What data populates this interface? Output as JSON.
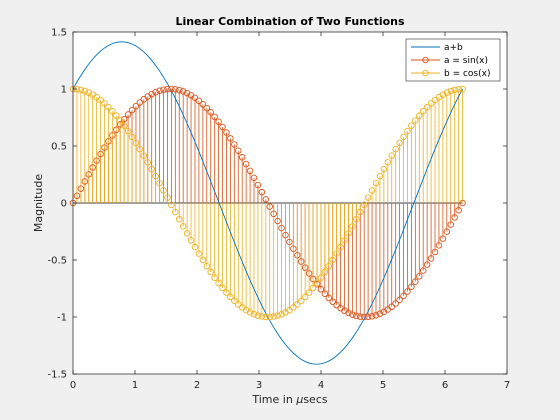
{
  "chart_data": {
    "type": "line",
    "title": "Linear Combination of Two Functions",
    "xlabel_prefix": "Time in ",
    "xlabel_greek": "μ",
    "xlabel_suffix": "secs",
    "ylabel": "Magnitude",
    "xlim": [
      0,
      7
    ],
    "ylim": [
      -1.5,
      1.5
    ],
    "xticks": [
      0,
      1,
      2,
      3,
      4,
      5,
      6,
      7
    ],
    "yticks": [
      -1.5,
      -1,
      -0.5,
      0,
      0.5,
      1,
      1.5
    ],
    "xtick_labels": [
      "0",
      "1",
      "2",
      "3",
      "4",
      "5",
      "6",
      "7"
    ],
    "ytick_labels": [
      "-1.5",
      "-1",
      "-0.5",
      "0",
      "0.5",
      "1",
      "1.5"
    ],
    "grid": false,
    "legend_position": "top-right",
    "x": {
      "start": 0,
      "end": 6.2832,
      "num_points": 100
    },
    "series": [
      {
        "name": "a+b",
        "kind": "line",
        "formula": "sin(x)+cos(x)",
        "color": "#0072bd"
      },
      {
        "name": "a = sin(x)",
        "kind": "stem",
        "formula": "sin(x)",
        "color": "#d95319",
        "marker": "circle"
      },
      {
        "name": "b = cos(x)",
        "kind": "stem",
        "formula": "cos(x)",
        "color": "#edb120",
        "marker": "circle"
      }
    ]
  }
}
